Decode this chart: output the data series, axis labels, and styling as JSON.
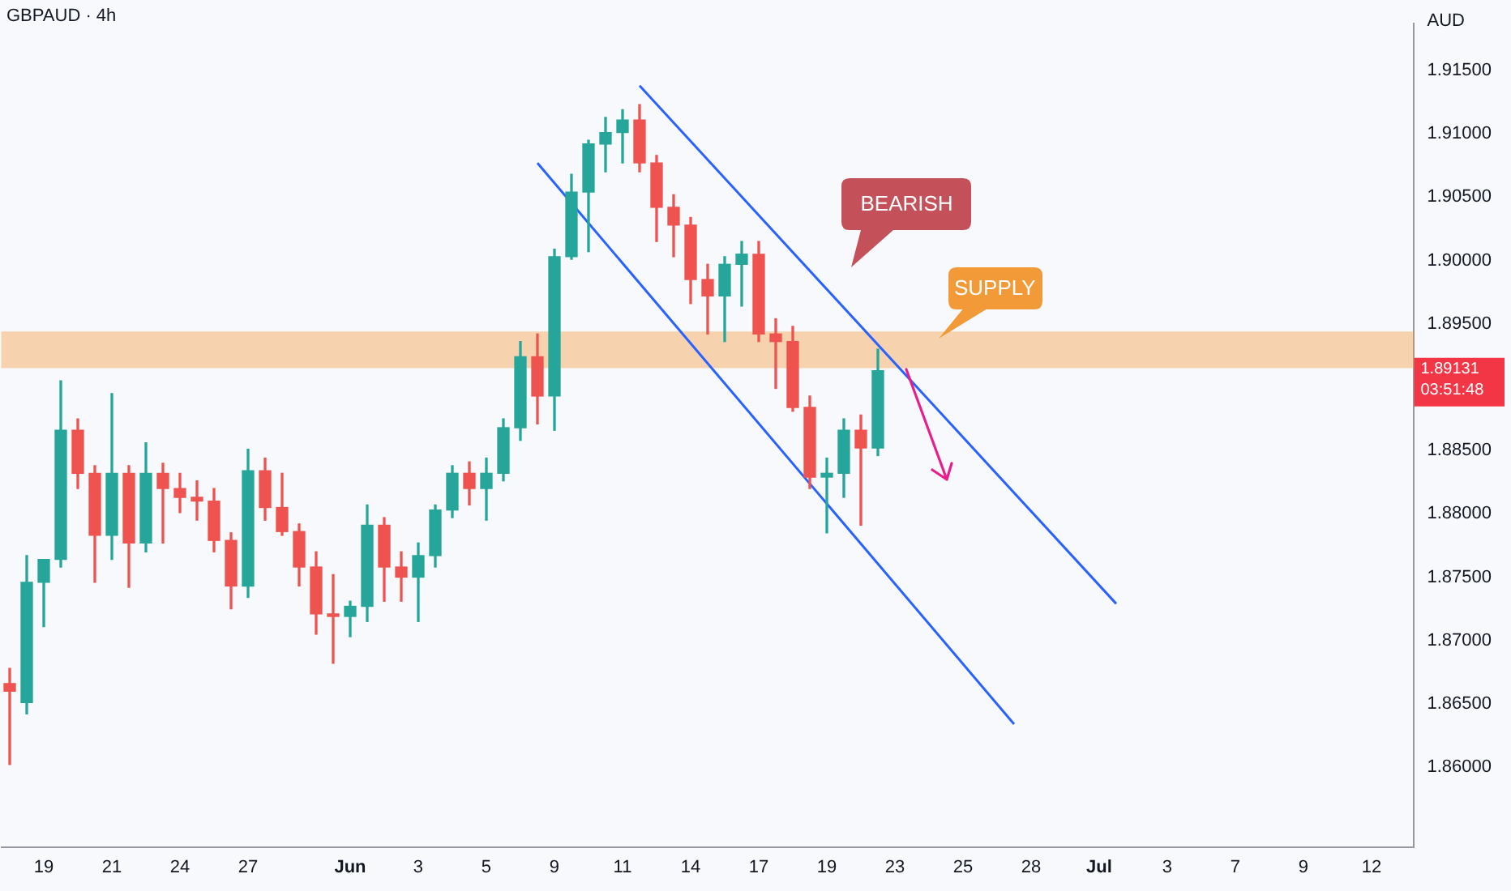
{
  "chart_data": {
    "type": "candlestick",
    "title": "GBPAUD · 4h",
    "ylabel": "AUD",
    "categories": [
      null,
      null,
      "19",
      null,
      null,
      null,
      "21",
      null,
      null,
      null,
      "24",
      null,
      null,
      null,
      "27",
      null,
      null,
      null,
      null,
      null,
      "Jun",
      null,
      null,
      null,
      "3",
      null,
      null,
      null,
      "5",
      null,
      null,
      null,
      "9",
      null,
      null,
      null,
      "11",
      null,
      null,
      null,
      "14",
      null,
      null,
      null,
      "17",
      null,
      null,
      null,
      "19",
      null,
      null,
      null,
      "23",
      null,
      null,
      null,
      "25",
      null,
      null,
      null,
      "28",
      null,
      null,
      null,
      "Jul",
      null,
      null,
      null,
      "3",
      null,
      null,
      null,
      "7",
      null,
      null,
      null,
      "9",
      null,
      null,
      null,
      "12",
      null,
      null
    ],
    "ohlc": [
      [
        1.8666,
        1.8678,
        1.8602,
        1.866
      ],
      [
        1.8651,
        1.8767,
        1.8642,
        1.8746
      ],
      [
        1.8746,
        1.8764,
        1.8711,
        1.8764
      ],
      [
        1.8764,
        1.8905,
        1.8758,
        1.8866
      ],
      [
        1.8866,
        1.8875,
        1.882,
        1.8832
      ],
      [
        1.8832,
        1.8838,
        1.8746,
        1.8783
      ],
      [
        1.8783,
        1.8895,
        1.8764,
        1.8832
      ],
      [
        1.8832,
        1.8838,
        1.8742,
        1.8777
      ],
      [
        1.8777,
        1.8856,
        1.877,
        1.8832
      ],
      [
        1.8832,
        1.884,
        1.8777,
        1.882
      ],
      [
        1.882,
        1.8832,
        1.8801,
        1.8813
      ],
      [
        1.8813,
        1.8826,
        1.8795,
        1.881
      ],
      [
        1.881,
        1.882,
        1.877,
        1.8779
      ],
      [
        1.8779,
        1.8785,
        1.8725,
        1.8743
      ],
      [
        1.8743,
        1.8851,
        1.8734,
        1.8834
      ],
      [
        1.8834,
        1.8844,
        1.8795,
        1.8805
      ],
      [
        1.8805,
        1.8832,
        1.8783,
        1.8786
      ],
      [
        1.8786,
        1.8792,
        1.8743,
        1.8758
      ],
      [
        1.8758,
        1.877,
        1.8705,
        1.8721
      ],
      [
        1.8721,
        1.8752,
        1.8682,
        1.8719
      ],
      [
        1.8719,
        1.8731,
        1.8703,
        1.8727
      ],
      [
        1.8727,
        1.8807,
        1.8715,
        1.8791
      ],
      [
        1.8791,
        1.8797,
        1.8731,
        1.8758
      ],
      [
        1.8758,
        1.877,
        1.8731,
        1.875
      ],
      [
        1.875,
        1.8777,
        1.8715,
        1.8767
      ],
      [
        1.8767,
        1.8807,
        1.8758,
        1.8803
      ],
      [
        1.8803,
        1.8838,
        1.8797,
        1.8832
      ],
      [
        1.8832,
        1.8841,
        1.8807,
        1.882
      ],
      [
        1.882,
        1.8844,
        1.8795,
        1.8832
      ],
      [
        1.8832,
        1.8875,
        1.8826,
        1.8868
      ],
      [
        1.8868,
        1.8936,
        1.8858,
        1.8924
      ],
      [
        1.8924,
        1.8942,
        1.8871,
        1.8893
      ],
      [
        1.8893,
        1.9009,
        1.8866,
        1.9003
      ],
      [
        1.9003,
        1.9068,
        1.9001,
        1.9054
      ],
      [
        1.9054,
        1.9095,
        1.9007,
        1.9092
      ],
      [
        1.9092,
        1.9113,
        1.907,
        1.9101
      ],
      [
        1.9101,
        1.9119,
        1.9077,
        1.9111
      ],
      [
        1.9111,
        1.9123,
        1.907,
        1.9077
      ],
      [
        1.9077,
        1.9083,
        1.9015,
        1.9042
      ],
      [
        1.9042,
        1.9052,
        1.9003,
        1.9028
      ],
      [
        1.9028,
        1.9034,
        1.8966,
        1.8985
      ],
      [
        1.8985,
        1.8997,
        1.8942,
        1.8972
      ],
      [
        1.8972,
        1.9003,
        1.8936,
        1.8997
      ],
      [
        1.8997,
        1.9015,
        1.8964,
        1.9005
      ],
      [
        1.9005,
        1.9015,
        1.8936,
        1.8942
      ],
      [
        1.8942,
        1.8954,
        1.8899,
        1.8936
      ],
      [
        1.8936,
        1.8948,
        1.8881,
        1.8884
      ],
      [
        1.8884,
        1.8893,
        1.882,
        1.8829
      ],
      [
        1.8829,
        1.8844,
        1.8785,
        1.8832
      ],
      [
        1.8832,
        1.8875,
        1.8813,
        1.8866
      ],
      [
        1.8866,
        1.8878,
        1.8791,
        1.8852
      ],
      [
        1.8852,
        1.893,
        1.8846,
        1.8913
      ],
      null,
      null,
      null,
      null,
      null,
      null,
      null,
      null,
      null,
      null,
      null,
      null,
      null,
      null,
      null,
      null,
      null,
      null,
      null,
      null,
      null,
      null,
      null,
      null,
      null,
      null,
      null,
      null,
      null,
      null,
      null
    ],
    "series": [
      {
        "type": "line",
        "color": "#2962ff",
        "values": [
          null,
          null,
          null,
          null,
          null,
          null,
          null,
          null,
          null,
          null,
          null,
          null,
          null,
          null,
          null,
          null,
          null,
          null,
          null,
          null,
          null,
          null,
          null,
          null,
          null,
          null,
          null,
          null,
          null,
          null,
          null,
          null,
          null,
          null,
          null,
          null,
          null,
          1.9138,
          null,
          null,
          null,
          null,
          null,
          null,
          null,
          null,
          null,
          null,
          null,
          null,
          null,
          null,
          null,
          null,
          null,
          null,
          null,
          null,
          null,
          null,
          null,
          null,
          null,
          null,
          null,
          1.8729,
          null,
          null,
          null,
          null,
          null,
          null,
          null,
          null,
          null,
          null,
          null,
          null,
          null,
          null,
          null,
          null,
          null
        ]
      },
      {
        "type": "line",
        "color": "#2962ff",
        "values": [
          null,
          null,
          null,
          null,
          null,
          null,
          null,
          null,
          null,
          null,
          null,
          null,
          null,
          null,
          null,
          null,
          null,
          null,
          null,
          null,
          null,
          null,
          null,
          null,
          null,
          null,
          null,
          null,
          null,
          null,
          null,
          1.9077,
          null,
          null,
          null,
          null,
          null,
          null,
          null,
          null,
          null,
          null,
          null,
          null,
          null,
          null,
          null,
          null,
          null,
          null,
          null,
          null,
          null,
          null,
          null,
          null,
          null,
          null,
          null,
          1.8634,
          null,
          null,
          null,
          null,
          null,
          null,
          null,
          null,
          null,
          null,
          null,
          null,
          null,
          null,
          null,
          null,
          null,
          null,
          null,
          null,
          null,
          null,
          null
        ]
      }
    ],
    "bands": [
      {
        "axis": "y",
        "from": 1.8915,
        "to": 1.8944,
        "label": "SUPPLY",
        "color": "#f29a38"
      }
    ],
    "annotations": [
      "BEARISH",
      "1.89131",
      "03:51:48"
    ],
    "ylim": [
      1.8537,
      1.9187
    ],
    "yticks": [
      {
        "value": 1.86,
        "label": "1.86000"
      },
      {
        "value": 1.865,
        "label": "1.86500"
      },
      {
        "value": 1.87,
        "label": "1.87000"
      },
      {
        "value": 1.875,
        "label": "1.87500"
      },
      {
        "value": 1.88,
        "label": "1.88000"
      },
      {
        "value": 1.885,
        "label": "1.88500"
      },
      {
        "value": 1.895,
        "label": "1.89500"
      },
      {
        "value": 1.9,
        "label": "1.90000"
      },
      {
        "value": 1.905,
        "label": "1.90500"
      },
      {
        "value": 1.91,
        "label": "1.91000"
      },
      {
        "value": 1.915,
        "label": "1.91500"
      }
    ]
  }
}
